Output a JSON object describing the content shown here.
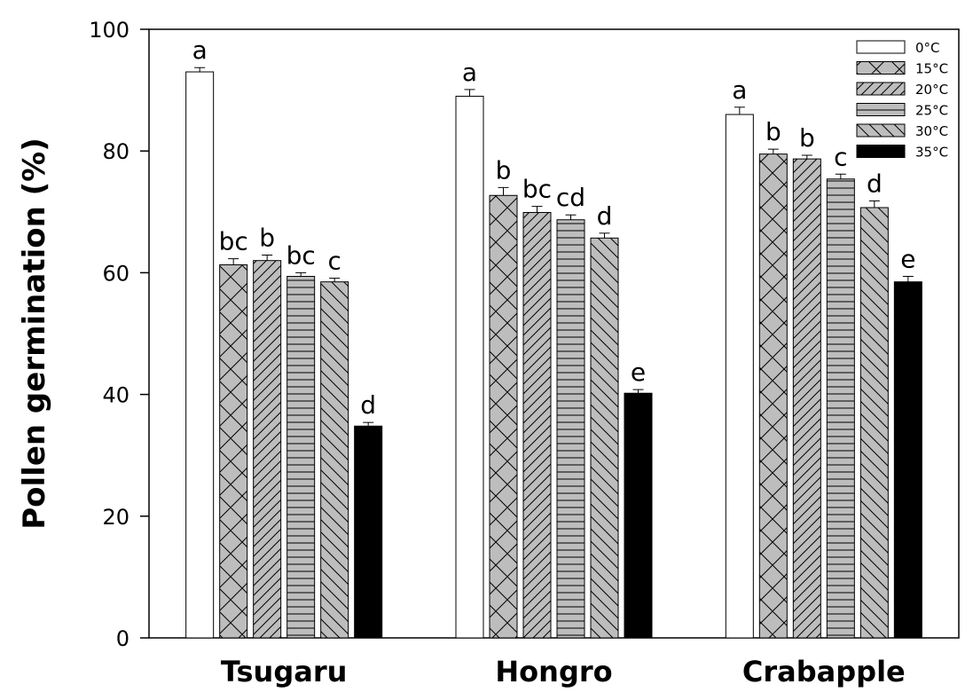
{
  "chart_data": {
    "type": "bar",
    "ylabel": "Pollen germination (%)",
    "ylim": [
      0,
      100
    ],
    "yticks": [
      0,
      20,
      40,
      60,
      80,
      100
    ],
    "grid": false,
    "legend_position": "top-right",
    "categories": [
      "Tsugaru",
      "Hongro",
      "Crabapple"
    ],
    "series": [
      {
        "name": "0°C",
        "pattern": "none",
        "values": [
          93.0,
          89.0,
          86.0
        ],
        "errors": [
          0.7,
          1.1,
          1.2
        ],
        "letters": [
          "a",
          "a",
          "a"
        ]
      },
      {
        "name": "15°C",
        "pattern": "crosshatch",
        "values": [
          61.3,
          72.7,
          79.5
        ],
        "errors": [
          1.0,
          1.3,
          0.8
        ],
        "letters": [
          "bc",
          "b",
          "b"
        ]
      },
      {
        "name": "20°C",
        "pattern": "diag-right",
        "values": [
          62.0,
          69.9,
          78.7
        ],
        "errors": [
          0.9,
          1.0,
          0.6
        ],
        "letters": [
          "b",
          "bc",
          "b"
        ]
      },
      {
        "name": "25°C",
        "pattern": "horizontal",
        "values": [
          59.4,
          68.7,
          75.4
        ],
        "errors": [
          0.6,
          0.8,
          0.8
        ],
        "letters": [
          "bc",
          "cd",
          "c"
        ]
      },
      {
        "name": "30°C",
        "pattern": "diag-left",
        "values": [
          58.5,
          65.7,
          70.7
        ],
        "errors": [
          0.6,
          0.8,
          1.1
        ],
        "letters": [
          "c",
          "d",
          "d"
        ]
      },
      {
        "name": "35°C",
        "pattern": "solid",
        "values": [
          34.8,
          40.2,
          58.5
        ],
        "errors": [
          0.6,
          0.6,
          0.9
        ],
        "letters": [
          "d",
          "e",
          "e"
        ]
      }
    ],
    "colors": {
      "fill_light": "#ffffff",
      "fill_pattern_bg": "#bdbdbd",
      "fill_dark": "#000000",
      "stroke": "#000000"
    }
  }
}
